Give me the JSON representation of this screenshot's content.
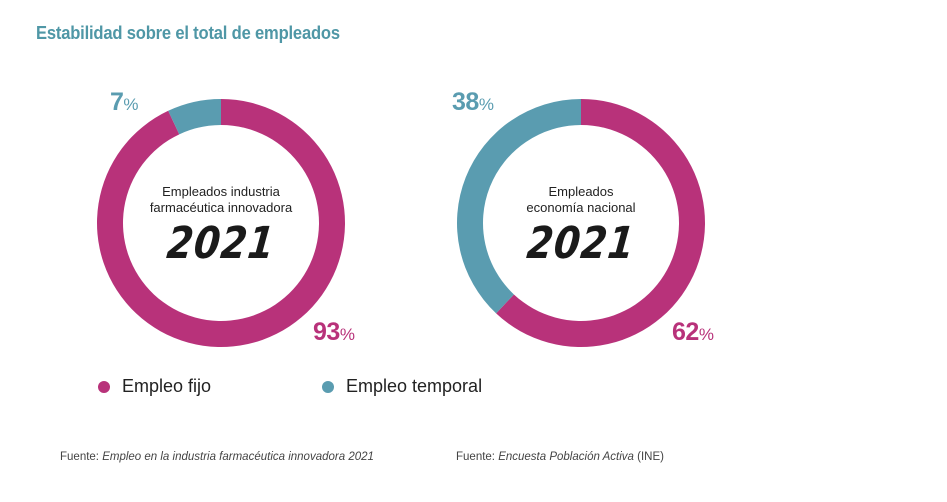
{
  "title": "Estabilidad sobre el total de empleados",
  "colors": {
    "fijo": "#b8327a",
    "temporal": "#5a9cb0",
    "title": "#4f97a6"
  },
  "chart_data": [
    {
      "type": "pie",
      "center_label_line1": "Empleados industria",
      "center_label_line2": "farmacéutica innovadora",
      "year": "2021",
      "categories": [
        "Empleo fijo",
        "Empleo temporal"
      ],
      "values": [
        93,
        7
      ],
      "labels": {
        "fijo": "93",
        "temporal": "7"
      }
    },
    {
      "type": "pie",
      "center_label_line1": "Empleados",
      "center_label_line2": "economía nacional",
      "year": "2021",
      "categories": [
        "Empleo fijo",
        "Empleo temporal"
      ],
      "values": [
        62,
        38
      ],
      "labels": {
        "fijo": "62",
        "temporal": "38"
      }
    }
  ],
  "percent_sign": "%",
  "legend": [
    {
      "label": "Empleo fijo",
      "color": "#b8327a"
    },
    {
      "label": "Empleo temporal",
      "color": "#5a9cb0"
    }
  ],
  "sources": [
    {
      "prefix": "Fuente: ",
      "title": "Empleo en la industria farmacéutica innovadora 2021",
      "suffix": ""
    },
    {
      "prefix": "Fuente: ",
      "title": "Encuesta Población Activa",
      "suffix": " (INE)"
    }
  ]
}
